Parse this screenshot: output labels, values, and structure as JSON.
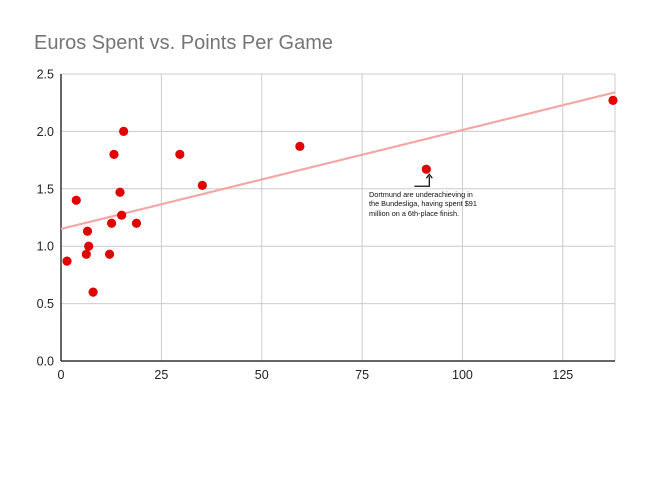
{
  "chart_data": {
    "type": "scatter",
    "title": "Euros Spent vs. Points Per Game",
    "xlabel": "",
    "ylabel": "",
    "xlim": [
      0,
      138
    ],
    "ylim": [
      0,
      2.5
    ],
    "x_ticks": [
      0,
      25,
      50,
      75,
      100,
      125
    ],
    "y_ticks": [
      0.0,
      0.5,
      1.0,
      1.5,
      2.0,
      2.5
    ],
    "x_tick_labels": [
      "0",
      "25",
      "50",
      "75",
      "100",
      "125"
    ],
    "y_tick_labels": [
      "0.0",
      "0.5",
      "1.0",
      "1.5",
      "2.0",
      "2.5"
    ],
    "grid": true,
    "point_color": "#e00000",
    "trendline_color": "#f4a7a7",
    "trendline": {
      "x": [
        0,
        138
      ],
      "y": [
        1.15,
        2.34
      ]
    },
    "series": [
      {
        "x": [
          1.5,
          3.8,
          6.3,
          6.6,
          6.9,
          8.0,
          12.1,
          12.6,
          13.2,
          14.7,
          15.1,
          15.6,
          18.8,
          29.6,
          35.2,
          59.5,
          91,
          137.5
        ],
        "y": [
          0.87,
          1.4,
          0.93,
          1.13,
          1.0,
          0.6,
          0.93,
          1.2,
          1.8,
          1.47,
          1.27,
          2.0,
          1.2,
          1.8,
          1.53,
          1.87,
          1.67,
          2.27
        ]
      }
    ],
    "annotations": [
      {
        "text": "Dortmund are underachieving in the Bundesliga, having spent $91 million on a 6th-place finish.",
        "x": 91,
        "y": 1.67
      }
    ]
  }
}
